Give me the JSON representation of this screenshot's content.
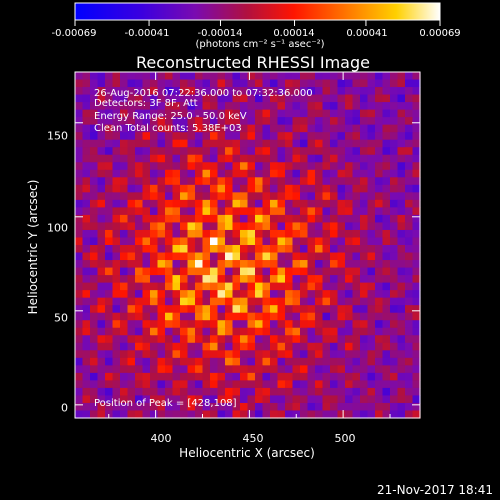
{
  "title": "Reconstructed RHESSI Image",
  "colorbar": {
    "ticks": [
      "-0.00069",
      "-0.00041",
      "-0.00014",
      "0.00014",
      "0.00041",
      "0.00069"
    ],
    "units": "(photons cm⁻² s⁻¹ asec⁻²)",
    "range": [
      -0.00069,
      0.00069
    ],
    "colormap": "red-temperature (blue → purple → red → orange → yellow → white)"
  },
  "info": {
    "time": "26-Aug-2016 07:22:36.000 to 07:32:36.000",
    "detectors": "Detectors: 3F 8F, Att",
    "energy": "Energy Range: 25.0 - 50.0 keV",
    "clean": "Clean     Total counts: 5.38E+03"
  },
  "peak": "Position of Peak = [428,108]",
  "timestamp": "21-Nov-2017 18:41",
  "chart_data": {
    "type": "heatmap",
    "title": "Reconstructed RHESSI Image",
    "xlabel": "Heliocentric X (arcsec)",
    "ylabel": "Heliocentric Y (arcsec)",
    "xlim": [
      357,
      541
    ],
    "ylim": [
      -7,
      177
    ],
    "xticks": [
      "400",
      "450",
      "500"
    ],
    "yticks": [
      "0",
      "50",
      "100",
      "150"
    ],
    "value_range": [
      -0.00069,
      0.00069
    ],
    "peak_position": [
      428,
      108
    ],
    "grid": false
  }
}
